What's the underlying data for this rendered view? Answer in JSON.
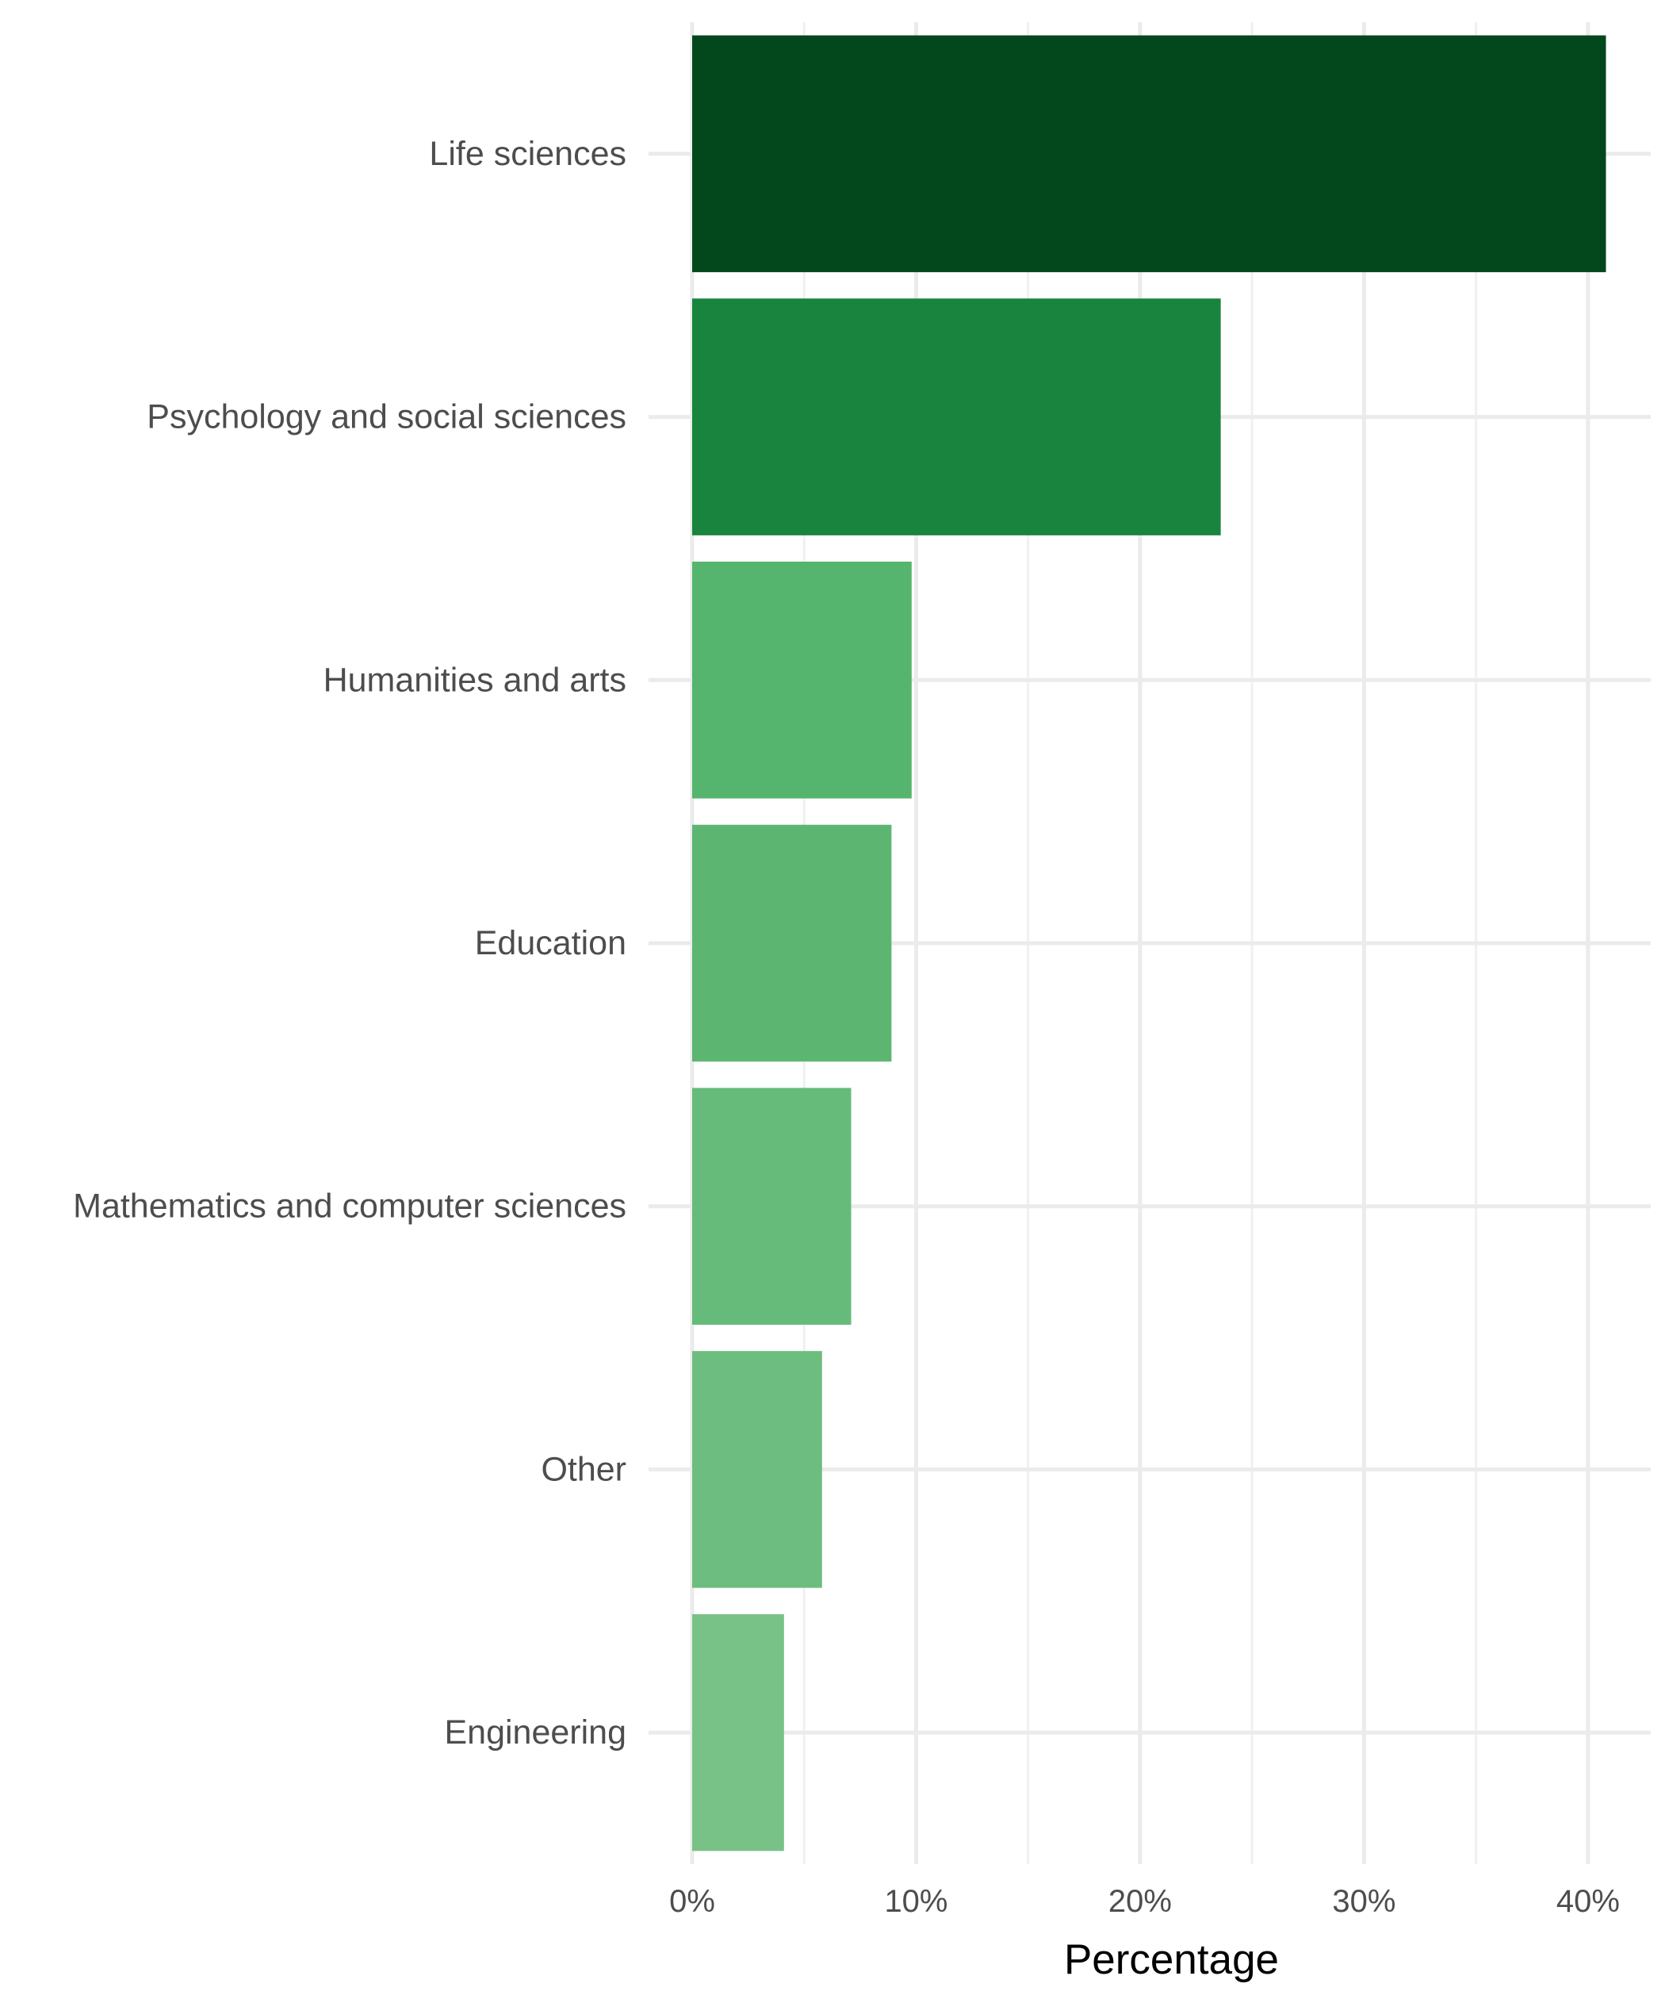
{
  "chart_data": {
    "type": "bar",
    "orientation": "horizontal",
    "categories": [
      "Life sciences",
      "Psychology and social sciences",
      "Humanities and arts",
      "Education",
      "Mathematics and computer sciences",
      "Other",
      "Engineering"
    ],
    "values": [
      40.8,
      23.6,
      9.8,
      8.9,
      7.1,
      5.8,
      4.1
    ],
    "colors": [
      "#03471c",
      "#18843e",
      "#55b56f",
      "#5cb672",
      "#66bb7a",
      "#6ebd80",
      "#78c288"
    ],
    "title": "",
    "xlabel": "Percentage",
    "ylabel": "",
    "xlim": [
      0,
      42.8
    ],
    "x_ticks": [
      "0%",
      "10%",
      "20%",
      "30%",
      "40%"
    ],
    "x_tick_values": [
      0,
      10,
      20,
      30,
      40
    ],
    "grid": true,
    "legend": "none"
  }
}
